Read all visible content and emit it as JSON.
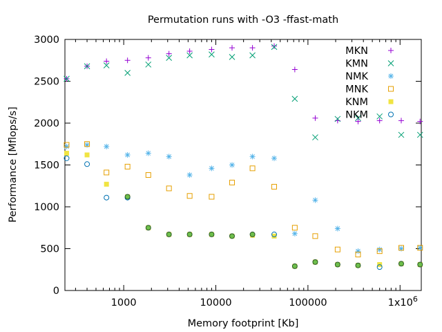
{
  "chart_data": {
    "type": "scatter",
    "title": "Permutation runs with -O3 -ffast-math",
    "xlabel": "Memory footprint [Kb]",
    "ylabel": "Performance [Mflops/s]",
    "xscale": "log",
    "xlim": [
      230,
      1700000
    ],
    "ylim": [
      0,
      3000
    ],
    "grid": false,
    "legend_position": "top-right",
    "x_ticks": [
      {
        "value": 1000,
        "label": "1000"
      },
      {
        "value": 10000,
        "label": "10000"
      },
      {
        "value": 100000,
        "label": "100000"
      },
      {
        "value": 1000000,
        "label": "1x10",
        "exponent": "6"
      }
    ],
    "y_ticks": [
      0,
      500,
      1000,
      1500,
      2000,
      2500,
      3000
    ],
    "x": [
      240,
      400,
      650,
      1100,
      1850,
      3100,
      5200,
      9000,
      15000,
      25000,
      43000,
      72000,
      120000,
      210000,
      350000,
      600000,
      1030000,
      1650000
    ],
    "series": [
      {
        "name": "MKN",
        "marker": "plus",
        "color": "#9400d3",
        "values": [
          2530,
          2680,
          2740,
          2750,
          2780,
          2830,
          2860,
          2880,
          2900,
          2900,
          2920,
          2640,
          2060,
          2030,
          2020,
          2030,
          2030,
          2020
        ]
      },
      {
        "name": "KMN",
        "marker": "cross",
        "color": "#009e73",
        "values": [
          2530,
          2680,
          2690,
          2600,
          2700,
          2780,
          2810,
          2820,
          2790,
          2810,
          2910,
          2290,
          1830,
          2050,
          2060,
          2080,
          1860,
          1860
        ]
      },
      {
        "name": "NMK",
        "marker": "star",
        "color": "#56b4e9",
        "values": [
          1720,
          1740,
          1720,
          1620,
          1640,
          1600,
          1380,
          1460,
          1500,
          1600,
          1580,
          680,
          1080,
          740,
          470,
          490,
          500,
          510
        ]
      },
      {
        "name": "MNK",
        "marker": "open-square",
        "color": "#e69f00",
        "values": [
          1740,
          1750,
          1410,
          1480,
          1380,
          1220,
          1130,
          1120,
          1290,
          1460,
          1240,
          750,
          650,
          490,
          430,
          470,
          510,
          510
        ]
      },
      {
        "name": "KNM",
        "marker": "filled-square",
        "color": "#f0e442",
        "values": [
          1640,
          1620,
          1270,
          1120,
          750,
          670,
          670,
          670,
          650,
          660,
          650,
          290,
          340,
          310,
          300,
          310,
          320,
          310
        ]
      },
      {
        "name": "NKM",
        "marker": "open-circle",
        "color": "#0072b2",
        "values": [
          1580,
          1510,
          1110,
          1110,
          null,
          null,
          null,
          null,
          null,
          null,
          670,
          null,
          null,
          null,
          null,
          280,
          null,
          null
        ]
      }
    ],
    "green_circles": {
      "marker": "filled-circle",
      "color": "#6fbf4a",
      "stroke": "#2a5a2a",
      "x": [
        1100,
        1850,
        3100,
        5200,
        9000,
        15000,
        25000,
        72000,
        120000,
        210000,
        350000,
        1030000,
        1650000
      ],
      "values": [
        1120,
        750,
        670,
        670,
        670,
        650,
        670,
        290,
        340,
        310,
        300,
        320,
        310
      ]
    }
  }
}
